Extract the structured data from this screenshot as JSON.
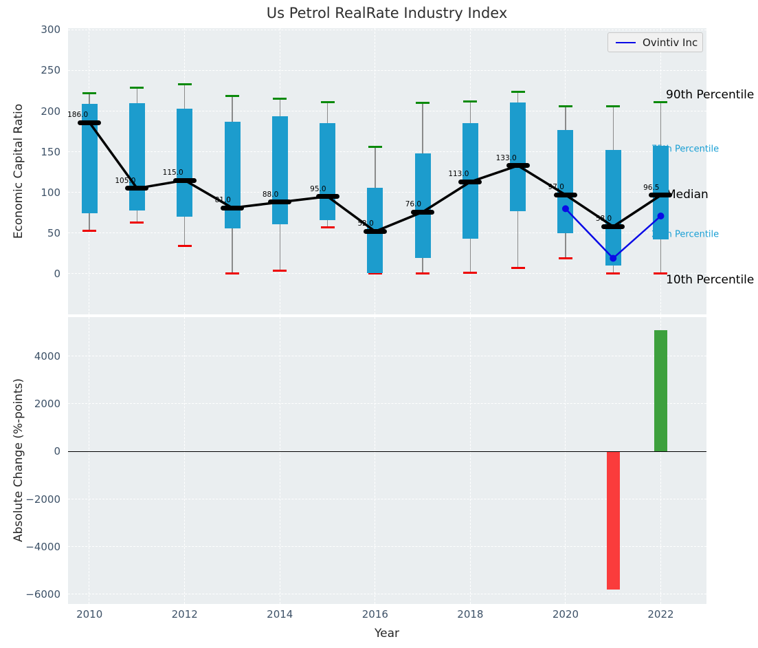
{
  "colors": {
    "iqr_box": "#1c9ccd",
    "whisker": "#8a8a8a",
    "p90_cap": "#0a8a0a",
    "p10_cap": "#ee0000",
    "median": "#000000",
    "ovintiv_line": "#0a0ae6",
    "increase_bar": "#3da03d",
    "decrease_bar": "#fa3c3c",
    "percentile_label_teal": "#1a9fd4",
    "tick_label": "#3d5167",
    "panel_background": "#eaeef0"
  },
  "chart_data": [
    {
      "type": "boxplot+line",
      "title": "Us Petrol RealRate Industry Index",
      "ylabel": "Economic Capital Ratio",
      "ylim": [
        -50,
        302
      ],
      "xlim": [
        2009.55,
        2022.96
      ],
      "yticks": [
        300,
        250,
        200,
        150,
        100,
        50,
        0
      ],
      "grid": true,
      "legend": {
        "label": "Ovintiv Inc",
        "position": "upper right"
      },
      "annotations": [
        {
          "text": "90th Percentile",
          "value": 220,
          "color": "#000000",
          "size": 17
        },
        {
          "text": "75th Percentile",
          "value": 153,
          "color": "#1a9fd4",
          "size": 13
        },
        {
          "text": "Median",
          "value": 97,
          "color": "#000000",
          "size": 17
        },
        {
          "text": "25th Percentile",
          "value": 48,
          "color": "#1a9fd4",
          "size": 13
        },
        {
          "text": "10th Percentile",
          "value": -8,
          "color": "#000000",
          "size": 17
        }
      ],
      "boxes": [
        {
          "year": 2010,
          "p10": 53,
          "p25": 74,
          "median": 186,
          "p75": 209,
          "p90": 222,
          "label": "186.0"
        },
        {
          "year": 2011,
          "p10": 63,
          "p25": 78,
          "median": 105,
          "p75": 210,
          "p90": 229,
          "label": "105.0"
        },
        {
          "year": 2012,
          "p10": 34,
          "p25": 70,
          "median": 115,
          "p75": 203,
          "p90": 233,
          "label": "115.0"
        },
        {
          "year": 2013,
          "p10": 0,
          "p25": 56,
          "median": 81,
          "p75": 187,
          "p90": 219,
          "label": "81.0"
        },
        {
          "year": 2014,
          "p10": 4,
          "p25": 61,
          "median": 88,
          "p75": 194,
          "p90": 215,
          "label": "88.0"
        },
        {
          "year": 2015,
          "p10": 57,
          "p25": 66,
          "median": 95,
          "p75": 185,
          "p90": 211,
          "label": "95.0"
        },
        {
          "year": 2016,
          "p10": 0,
          "p25": 1,
          "median": 52,
          "p75": 106,
          "p90": 156,
          "label": "52.0"
        },
        {
          "year": 2017,
          "p10": 0,
          "p25": 19,
          "median": 76,
          "p75": 148,
          "p90": 210,
          "label": "76.0"
        },
        {
          "year": 2018,
          "p10": 1,
          "p25": 43,
          "median": 113,
          "p75": 185,
          "p90": 212,
          "label": "113.0"
        },
        {
          "year": 2019,
          "p10": 7,
          "p25": 77,
          "median": 133,
          "p75": 211,
          "p90": 224,
          "label": "133.0"
        },
        {
          "year": 2020,
          "p10": 19,
          "p25": 50,
          "median": 97,
          "p75": 177,
          "p90": 206,
          "label": "97.0"
        },
        {
          "year": 2021,
          "p10": 0,
          "p25": 10,
          "median": 58,
          "p75": 152,
          "p90": 206,
          "label": "58.0"
        },
        {
          "year": 2022,
          "p10": 0,
          "p25": 42,
          "median": 96.5,
          "p75": 157,
          "p90": 211,
          "label": "96.5"
        }
      ],
      "series": [
        {
          "name": "Ovintiv Inc",
          "color": "#0a0ae6",
          "points": [
            {
              "year": 2020,
              "value": 80
            },
            {
              "year": 2021,
              "value": 19
            },
            {
              "year": 2022,
              "value": 71
            }
          ]
        }
      ]
    },
    {
      "type": "bar",
      "ylabel": "Absolute Change (%-points)",
      "xlabel": "Year",
      "ylim": [
        -6400,
        5640
      ],
      "yticks": [
        4000,
        2000,
        0,
        -2000,
        -4000,
        -6000
      ],
      "xticks": [
        2010,
        2012,
        2014,
        2016,
        2018,
        2020,
        2022
      ],
      "zero_line": true,
      "grid": true,
      "bars": [
        {
          "year": 2021,
          "value": -5800,
          "color": "#fa3c3c"
        },
        {
          "year": 2022,
          "value": 5100,
          "color": "#3da03d"
        }
      ]
    }
  ]
}
